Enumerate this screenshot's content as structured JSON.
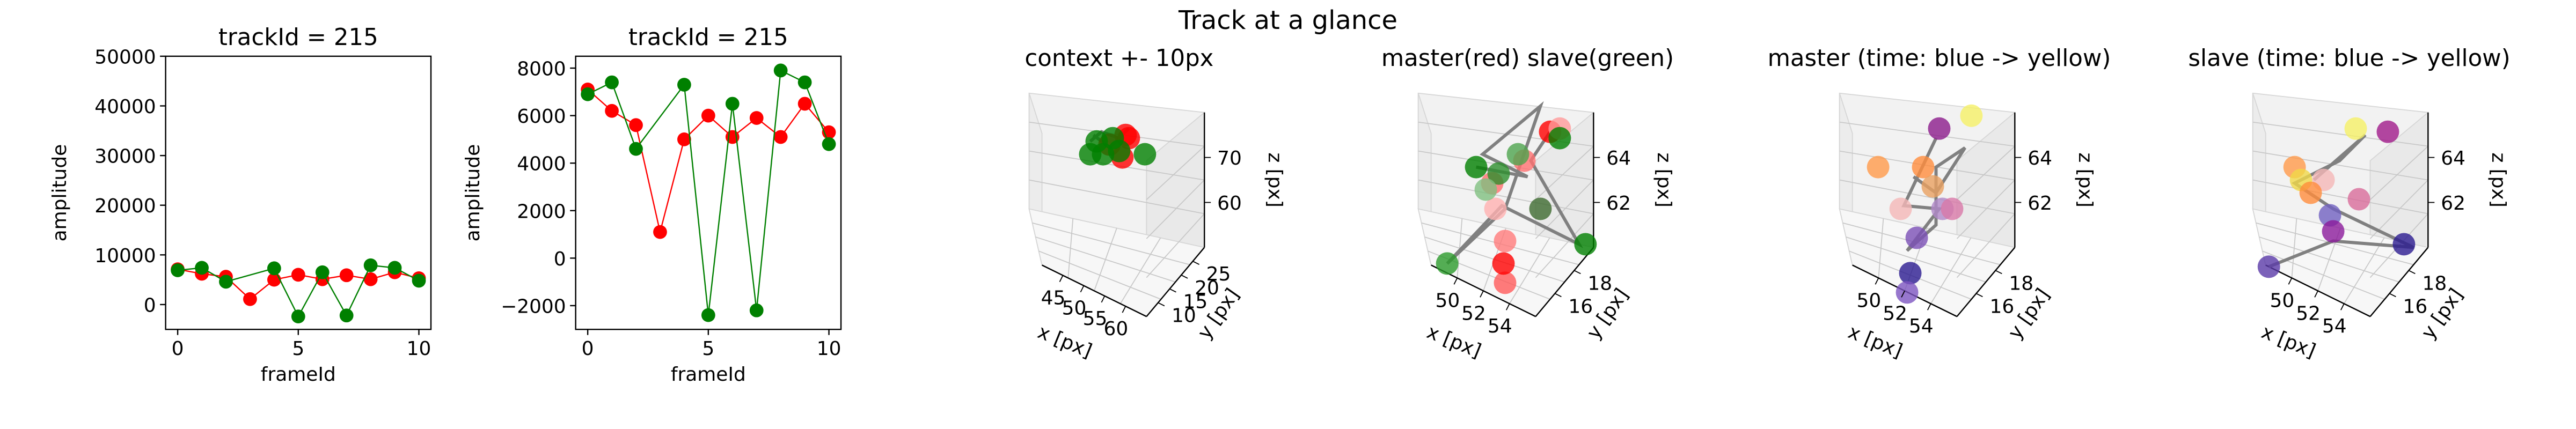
{
  "figure": {
    "suptitle": "Track at a glance"
  },
  "colors": {
    "master": "#ff0000",
    "slave": "#008000",
    "path": "#808080"
  },
  "chart_data": [
    {
      "type": "line",
      "title": "trackId = 215",
      "xlabel": "frameId",
      "ylabel": "amplitude",
      "xlim": [
        -0.5,
        10.5
      ],
      "ylim": [
        -5000,
        50000
      ],
      "xticks": [
        0,
        5,
        10
      ],
      "yticks": [
        0,
        10000,
        20000,
        30000,
        40000,
        50000
      ],
      "ytick_labels": [
        "0",
        "10000",
        "20000",
        "30000",
        "40000",
        "50000"
      ],
      "x": [
        0,
        1,
        2,
        3,
        4,
        5,
        6,
        7,
        8,
        9,
        10
      ],
      "series": [
        {
          "color": "#ff0000",
          "values": [
            7100,
            6200,
            5600,
            1100,
            5000,
            6000,
            5100,
            5900,
            5100,
            6500,
            5300
          ]
        },
        {
          "color": "#008000",
          "values": [
            6900,
            7400,
            4600,
            null,
            7300,
            -2400,
            6500,
            -2200,
            7900,
            7400,
            4800
          ]
        }
      ]
    },
    {
      "type": "line",
      "title": "trackId = 215",
      "xlabel": "frameId",
      "ylabel": "amplitude",
      "xlim": [
        -0.5,
        10.5
      ],
      "ylim": [
        -3000,
        8500
      ],
      "xticks": [
        0,
        5,
        10
      ],
      "yticks": [
        -2000,
        0,
        2000,
        4000,
        6000,
        8000
      ],
      "ytick_labels": [
        "−2000",
        "0",
        "2000",
        "4000",
        "6000",
        "8000"
      ],
      "x": [
        0,
        1,
        2,
        3,
        4,
        5,
        6,
        7,
        8,
        9,
        10
      ],
      "series": [
        {
          "color": "#ff0000",
          "values": [
            7100,
            6200,
            5600,
            1100,
            5000,
            6000,
            5100,
            5900,
            5100,
            6500,
            5300
          ]
        },
        {
          "color": "#008000",
          "values": [
            6900,
            7400,
            4600,
            null,
            7300,
            -2400,
            6500,
            -2200,
            7900,
            7400,
            4800
          ]
        }
      ]
    },
    {
      "type": "scatter",
      "title": "context +- 10px",
      "xlabel": "x [px]",
      "ylabel": "y [px]",
      "zlabel": "z [px]",
      "xticks": [
        "45",
        "50",
        "55",
        "60"
      ],
      "yticks": [
        "10",
        "15",
        "20",
        "25"
      ],
      "zticks": [
        "60",
        "70"
      ]
    },
    {
      "type": "scatter",
      "title": "master(red) slave(green)",
      "xlabel": "x [px]",
      "ylabel": "y [px]",
      "zlabel": "z [px]",
      "xticks": [
        "50",
        "52",
        "54"
      ],
      "yticks": [
        "16",
        "18"
      ],
      "zticks": [
        "62",
        "64"
      ]
    },
    {
      "type": "scatter",
      "title": "master (time: blue -> yellow)",
      "xlabel": "x [px]",
      "ylabel": "y [px]",
      "zlabel": "z [px]",
      "xticks": [
        "50",
        "52",
        "54"
      ],
      "yticks": [
        "16",
        "18"
      ],
      "zticks": [
        "62",
        "64"
      ]
    },
    {
      "type": "scatter",
      "title": "slave (time: blue -> yellow)",
      "xlabel": "x [px]",
      "ylabel": "y [px]",
      "zlabel": "z [px]",
      "xticks": [
        "50",
        "52",
        "54"
      ],
      "yticks": [
        "16",
        "18"
      ],
      "zticks": [
        "62",
        "64"
      ]
    }
  ]
}
